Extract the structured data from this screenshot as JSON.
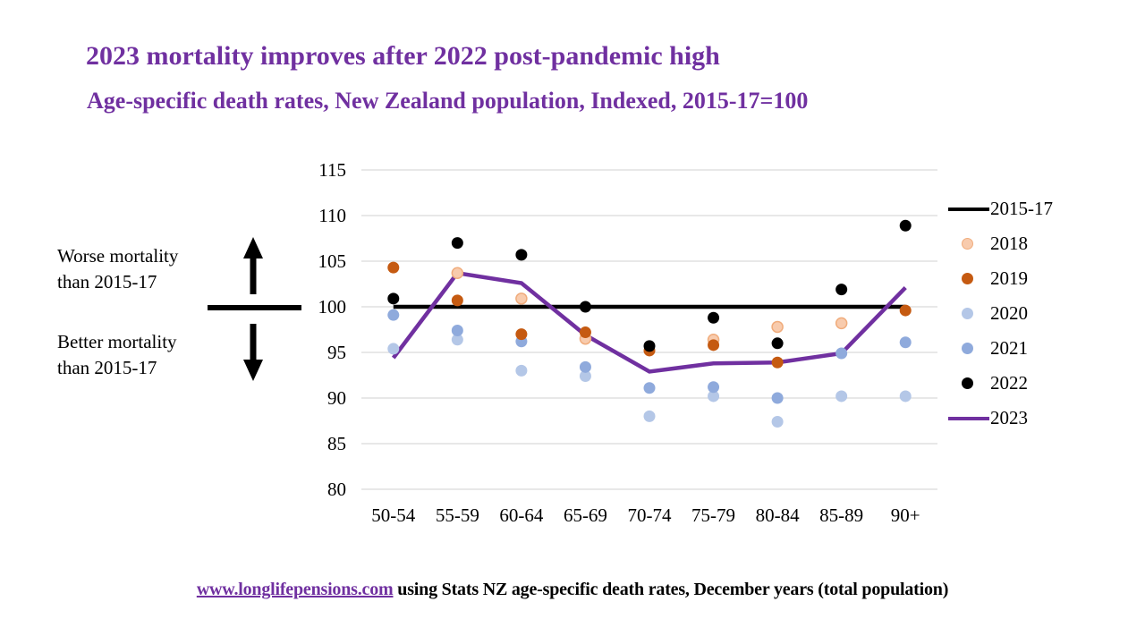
{
  "title": "2023 mortality improves after 2022 post-pandemic high",
  "subtitle": "Age-specific death rates, New Zealand population, Indexed, 2015-17=100",
  "annotations": {
    "worse_line1": "Worse mortality",
    "worse_line2": "than 2015-17",
    "better_line1": "Better mortality",
    "better_line2": "than 2015-17"
  },
  "footer": {
    "link": "www.longlifepensions.com",
    "text": " using Stats NZ age-specific death rates, December years (total population)"
  },
  "colors": {
    "accent_purple": "#7030A0",
    "gridline": "#D9D9D9",
    "baseline_black": "#000000"
  },
  "chart_data": {
    "type": "line+scatter",
    "title": "Age-specific death rates, New Zealand population, Indexed, 2015-17=100",
    "categories": [
      "50-54",
      "55-59",
      "60-64",
      "65-69",
      "70-74",
      "75-79",
      "80-84",
      "85-89",
      "90+"
    ],
    "y_ticks": [
      115,
      110,
      105,
      100,
      95,
      90,
      85,
      80
    ],
    "ylim": [
      80,
      115
    ],
    "grid": true,
    "legend_position": "right",
    "draw_order": [
      "2015-17",
      "2023",
      "2020",
      "2021",
      "2018",
      "2019",
      "2022"
    ],
    "series": [
      {
        "name": "2015-17",
        "type": "line",
        "color": "#000000",
        "width": 4.5,
        "values": [
          100,
          100,
          100,
          100,
          100,
          100,
          100,
          100,
          100
        ]
      },
      {
        "name": "2018",
        "type": "dot",
        "color": "#F8CBAD",
        "stroke": "#F0AC7C",
        "values": [
          null,
          103.7,
          100.9,
          96.5,
          null,
          96.4,
          97.8,
          98.2,
          null
        ]
      },
      {
        "name": "2019",
        "type": "dot",
        "color": "#C55A11",
        "values": [
          104.3,
          100.7,
          97.0,
          97.2,
          95.2,
          95.8,
          93.9,
          null,
          99.6
        ]
      },
      {
        "name": "2020",
        "type": "dot",
        "color": "#B4C7E7",
        "values": [
          95.4,
          96.4,
          93.0,
          92.4,
          88.0,
          90.2,
          87.4,
          90.2,
          90.2
        ]
      },
      {
        "name": "2021",
        "type": "dot",
        "color": "#8FAADC",
        "values": [
          99.1,
          97.4,
          96.2,
          93.4,
          91.1,
          91.2,
          90.0,
          94.9,
          96.1
        ]
      },
      {
        "name": "2022",
        "type": "dot",
        "color": "#000000",
        "values": [
          100.9,
          107.0,
          105.7,
          100.0,
          95.7,
          98.8,
          96.0,
          101.9,
          108.9
        ]
      },
      {
        "name": "2023",
        "type": "line",
        "color": "#7030A0",
        "width": 4.5,
        "values": [
          94.4,
          103.7,
          102.6,
          96.9,
          92.9,
          93.8,
          93.9,
          94.9,
          102.1
        ]
      }
    ]
  }
}
